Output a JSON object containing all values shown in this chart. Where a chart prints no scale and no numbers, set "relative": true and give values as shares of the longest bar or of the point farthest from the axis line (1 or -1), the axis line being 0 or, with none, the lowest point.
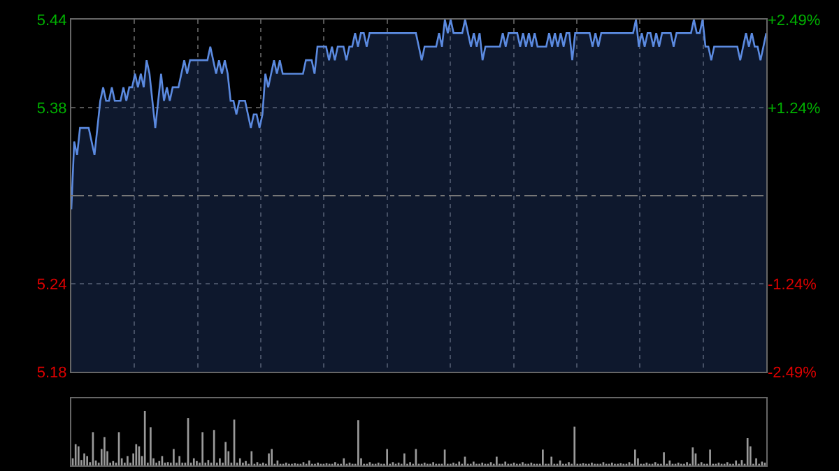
{
  "chart_data": [
    {
      "type": "area",
      "color": "#5b8ae0",
      "categories": [
        null,
        null,
        null,
        null,
        null,
        null,
        null,
        null,
        null,
        null,
        null,
        null,
        null,
        null,
        null,
        null,
        null,
        null,
        null,
        null,
        null,
        null,
        null,
        null,
        null,
        null,
        null,
        null,
        null,
        null,
        null,
        null,
        null,
        null,
        null,
        null,
        null,
        null,
        null,
        null,
        null,
        null,
        null,
        null,
        null,
        null,
        null,
        null,
        null,
        null,
        null,
        null,
        null,
        null,
        null,
        null,
        null,
        null,
        null,
        null,
        null,
        null,
        null,
        null,
        null,
        null,
        null,
        null,
        null,
        null,
        null,
        null,
        null,
        null,
        null,
        null,
        null,
        null,
        null,
        null,
        null,
        null,
        null,
        null,
        null,
        null,
        null,
        null,
        null,
        null,
        null,
        null,
        null,
        null,
        null,
        null,
        null,
        null,
        null,
        null,
        null,
        null,
        null,
        null,
        null,
        null,
        null,
        null,
        null,
        null,
        null,
        null,
        null,
        null,
        null,
        null,
        null,
        null,
        null,
        null,
        null,
        null,
        null,
        null,
        null,
        null,
        null,
        null,
        null,
        null,
        null,
        null,
        null,
        null,
        null,
        null,
        null,
        null,
        null,
        null,
        null,
        null,
        null,
        null,
        null,
        null,
        null,
        null,
        null,
        null,
        null,
        null,
        null,
        null,
        null,
        null,
        null,
        null,
        null,
        null,
        null,
        null,
        null,
        null,
        null,
        null,
        null,
        null,
        null,
        null,
        null,
        null,
        null,
        null,
        null,
        null,
        null,
        null,
        null,
        null,
        null,
        null,
        null,
        null,
        null,
        null,
        null,
        null,
        null,
        null,
        null,
        null,
        null,
        null,
        null,
        null,
        null,
        null,
        null,
        null,
        null,
        null,
        null,
        null,
        null,
        null,
        null,
        null,
        null,
        null,
        null,
        null,
        null,
        null,
        null,
        null,
        null,
        null,
        null,
        null,
        null,
        null,
        null,
        null,
        null,
        null,
        null,
        null,
        null,
        null,
        null,
        null,
        null,
        null,
        null,
        null,
        null,
        null,
        null,
        null,
        null
      ],
      "values": [
        5.3,
        5.35,
        5.34,
        5.36,
        5.36,
        5.36,
        5.36,
        5.35,
        5.34,
        5.36,
        5.38,
        5.39,
        5.38,
        5.38,
        5.39,
        5.38,
        5.38,
        5.38,
        5.39,
        5.38,
        5.39,
        5.39,
        5.4,
        5.39,
        5.4,
        5.39,
        5.41,
        5.4,
        5.38,
        5.36,
        5.38,
        5.4,
        5.38,
        5.39,
        5.38,
        5.39,
        5.39,
        5.39,
        5.4,
        5.41,
        5.4,
        5.41,
        5.41,
        5.41,
        5.41,
        5.41,
        5.41,
        5.41,
        5.42,
        5.41,
        5.4,
        5.41,
        5.4,
        5.41,
        5.4,
        5.38,
        5.38,
        5.37,
        5.38,
        5.38,
        5.38,
        5.37,
        5.36,
        5.37,
        5.37,
        5.36,
        5.37,
        5.4,
        5.39,
        5.4,
        5.41,
        5.4,
        5.41,
        5.4,
        5.4,
        5.4,
        5.4,
        5.4,
        5.4,
        5.4,
        5.4,
        5.41,
        5.41,
        5.41,
        5.4,
        5.42,
        5.42,
        5.42,
        5.42,
        5.41,
        5.42,
        5.41,
        5.42,
        5.42,
        5.42,
        5.41,
        5.42,
        5.42,
        5.43,
        5.42,
        5.43,
        5.43,
        5.42,
        5.43,
        5.43,
        5.43,
        5.43,
        5.43,
        5.43,
        5.43,
        5.43,
        5.43,
        5.43,
        5.43,
        5.43,
        5.43,
        5.43,
        5.43,
        5.43,
        5.43,
        5.42,
        5.41,
        5.42,
        5.42,
        5.42,
        5.42,
        5.42,
        5.43,
        5.42,
        5.44,
        5.43,
        5.44,
        5.43,
        5.43,
        5.43,
        5.43,
        5.44,
        5.43,
        5.42,
        5.43,
        5.42,
        5.43,
        5.41,
        5.42,
        5.42,
        5.42,
        5.42,
        5.42,
        5.42,
        5.43,
        5.42,
        5.43,
        5.43,
        5.43,
        5.43,
        5.42,
        5.43,
        5.42,
        5.43,
        5.42,
        5.43,
        5.42,
        5.42,
        5.42,
        5.42,
        5.43,
        5.42,
        5.43,
        5.42,
        5.43,
        5.42,
        5.43,
        5.43,
        5.41,
        5.43,
        5.43,
        5.43,
        5.43,
        5.43,
        5.43,
        5.42,
        5.43,
        5.42,
        5.43,
        5.43,
        5.43,
        5.43,
        5.43,
        5.43,
        5.43,
        5.43,
        5.43,
        5.43,
        5.43,
        5.43,
        5.44,
        5.42,
        5.43,
        5.42,
        5.43,
        5.43,
        5.42,
        5.43,
        5.42,
        5.43,
        5.43,
        5.43,
        5.43,
        5.42,
        5.43,
        5.43,
        5.43,
        5.43,
        5.43,
        5.43,
        5.44,
        5.43,
        5.43,
        5.44,
        5.42,
        5.42,
        5.41,
        5.42,
        5.42,
        5.42,
        5.42,
        5.42,
        5.42,
        5.42,
        5.42,
        5.42,
        5.41,
        5.42,
        5.43,
        5.42,
        5.43,
        5.42,
        5.42,
        5.41,
        5.42,
        5.43
      ],
      "ylim": [
        5.18,
        5.44
      ],
      "yticks": [
        5.18,
        {
          "value": 5.245,
          "label": "5.24"
        },
        {
          "value": 5.375,
          "label": "5.38"
        },
        5.44
      ],
      "y2lim": [
        -2.49,
        2.49
      ],
      "y2ticks": [
        {
          "value": -2.49,
          "label": "-2.49%"
        },
        {
          "value": -1.245,
          "label": "-1.24%"
        },
        {
          "value": 1.245,
          "label": "+1.24%"
        },
        {
          "value": 2.49,
          "label": "+2.49%"
        }
      ],
      "ref_lines": [
        {
          "axis": "y",
          "value": 5.31,
          "line_style": "dashed",
          "color": "#777777"
        }
      ],
      "grid": true,
      "tick_labels": "y"
    },
    {
      "type": "bar",
      "relative": true,
      "color": "#9a9a9a",
      "categories": [
        null,
        null,
        null,
        null,
        null,
        null,
        null,
        null,
        null,
        null,
        null,
        null,
        null,
        null,
        null,
        null,
        null,
        null,
        null,
        null,
        null,
        null,
        null,
        null,
        null,
        null,
        null,
        null,
        null,
        null,
        null,
        null,
        null,
        null,
        null,
        null,
        null,
        null,
        null,
        null,
        null,
        null,
        null,
        null,
        null,
        null,
        null,
        null,
        null,
        null,
        null,
        null,
        null,
        null,
        null,
        null,
        null,
        null,
        null,
        null,
        null,
        null,
        null,
        null,
        null,
        null,
        null,
        null,
        null,
        null,
        null,
        null,
        null,
        null,
        null,
        null,
        null,
        null,
        null,
        null,
        null,
        null,
        null,
        null,
        null,
        null,
        null,
        null,
        null,
        null,
        null,
        null,
        null,
        null,
        null,
        null,
        null,
        null,
        null,
        null,
        null,
        null,
        null,
        null,
        null,
        null,
        null,
        null,
        null,
        null,
        null,
        null,
        null,
        null,
        null,
        null,
        null,
        null,
        null,
        null,
        null,
        null,
        null,
        null,
        null,
        null,
        null,
        null,
        null,
        null,
        null,
        null,
        null,
        null,
        null,
        null,
        null,
        null,
        null,
        null,
        null,
        null,
        null,
        null,
        null,
        null,
        null,
        null,
        null,
        null,
        null,
        null,
        null,
        null,
        null,
        null,
        null,
        null,
        null,
        null,
        null,
        null,
        null,
        null,
        null,
        null,
        null,
        null,
        null,
        null,
        null,
        null,
        null,
        null,
        null,
        null,
        null,
        null,
        null,
        null,
        null,
        null,
        null,
        null,
        null,
        null,
        null,
        null,
        null,
        null,
        null,
        null,
        null,
        null,
        null,
        null,
        null,
        null,
        null,
        null,
        null,
        null,
        null,
        null,
        null,
        null,
        null,
        null,
        null,
        null,
        null,
        null,
        null,
        null,
        null,
        null,
        null,
        null,
        null,
        null,
        null,
        null,
        null,
        null,
        null,
        null,
        null,
        null,
        null,
        null,
        null,
        null,
        null,
        null,
        null,
        null,
        null,
        null,
        null,
        null,
        null
      ],
      "values": [
        0.13,
        0.39,
        0.35,
        0.1,
        0.22,
        0.17,
        0.06,
        0.61,
        0.09,
        0.05,
        0.3,
        0.52,
        0.26,
        0.05,
        0.08,
        0.05,
        0.61,
        0.13,
        0.05,
        0.17,
        0.05,
        0.22,
        0.39,
        0.35,
        0.17,
        1,
        0.05,
        0.7,
        0.13,
        0.05,
        0.08,
        0.17,
        0.05,
        0.06,
        0.05,
        0.3,
        0.05,
        0.17,
        0.05,
        0.05,
        0.87,
        0.05,
        0.13,
        0.08,
        0.05,
        0.61,
        0.05,
        0.1,
        0.05,
        0.65,
        0.05,
        0.13,
        0.05,
        0.43,
        0.26,
        0.05,
        0.84,
        0.05,
        0.13,
        0.05,
        0.08,
        0.03,
        0.26,
        0.03,
        0.06,
        0.03,
        0.05,
        0.03,
        0.22,
        0.3,
        0.03,
        0.09,
        0.03,
        0.03,
        0.05,
        0.03,
        0.03,
        0.04,
        0.03,
        0.03,
        0.06,
        0.03,
        0.09,
        0.03,
        0.03,
        0.05,
        0.03,
        0.03,
        0.04,
        0.03,
        0.03,
        0.06,
        0.03,
        0.03,
        0.13,
        0.03,
        0.05,
        0.03,
        0.03,
        0.83,
        0.13,
        0.03,
        0.03,
        0.06,
        0.03,
        0.03,
        0.05,
        0.03,
        0.03,
        0.3,
        0.03,
        0.06,
        0.03,
        0.05,
        0.03,
        0.22,
        0.03,
        0.06,
        0.03,
        0.3,
        0.03,
        0.03,
        0.05,
        0.03,
        0.03,
        0.06,
        0.03,
        0.03,
        0.03,
        0.29,
        0.03,
        0.03,
        0.05,
        0.03,
        0.07,
        0.03,
        0.16,
        0.03,
        0.03,
        0.07,
        0.03,
        0.03,
        0.05,
        0.03,
        0.03,
        0.06,
        0.03,
        0.16,
        0.03,
        0.03,
        0.07,
        0.03,
        0.03,
        0.05,
        0.03,
        0.03,
        0.06,
        0.03,
        0.03,
        0.05,
        0.03,
        0.03,
        0.03,
        0.29,
        0.03,
        0.03,
        0.16,
        0.03,
        0.03,
        0.09,
        0.03,
        0.03,
        0.06,
        0.03,
        0.71,
        0.03,
        0.03,
        0.04,
        0.03,
        0.03,
        0.05,
        0.03,
        0.03,
        0.03,
        0.06,
        0.03,
        0.03,
        0.05,
        0.03,
        0.03,
        0.04,
        0.03,
        0.03,
        0.06,
        0.03,
        0.29,
        0.13,
        0.03,
        0.03,
        0.05,
        0.03,
        0.03,
        0.06,
        0.03,
        0.03,
        0.24,
        0.03,
        0.09,
        0.03,
        0.03,
        0.05,
        0.03,
        0.03,
        0.06,
        0.03,
        0.33,
        0.22,
        0.03,
        0.06,
        0.03,
        0.03,
        0.29,
        0.03,
        0.03,
        0.05,
        0.03,
        0.03,
        0.06,
        0.03,
        0.03,
        0.09,
        0.03,
        0.1,
        0.03,
        0.5,
        0.35,
        0.03,
        0.13,
        0.03,
        0.07,
        0.05
      ],
      "grid": false,
      "tick_labels": false
    }
  ]
}
